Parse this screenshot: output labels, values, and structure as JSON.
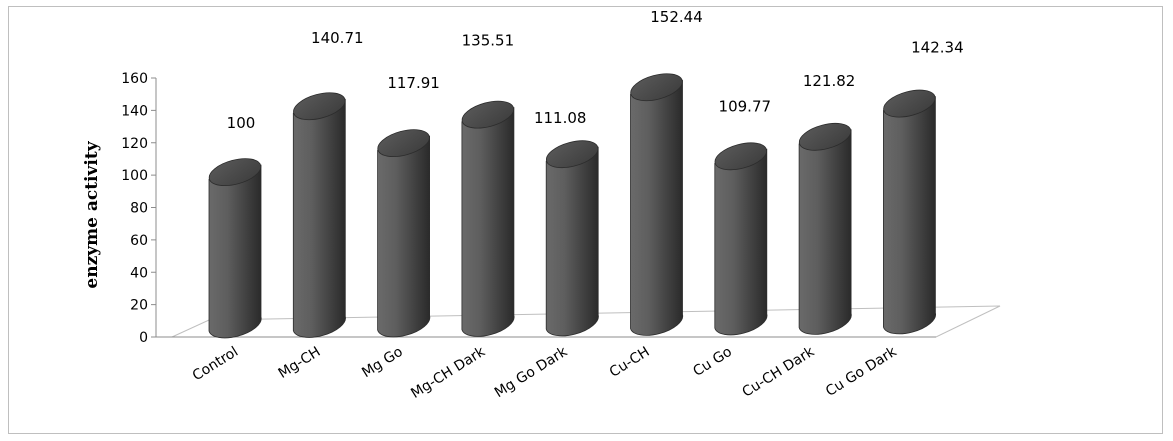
{
  "chart_data": {
    "type": "bar",
    "style": "3d-cylinder",
    "categories": [
      "Control",
      "Mg-CH",
      "Mg Go",
      "Mg-CH  Dark",
      "Mg Go Dark",
      "Cu-CH",
      "Cu Go",
      "Cu-CH Dark",
      "Cu Go Dark"
    ],
    "values": [
      100,
      140.71,
      117.91,
      135.51,
      111.08,
      152.44,
      109.77,
      121.82,
      142.34
    ],
    "data_labels": [
      "100",
      "140.71",
      "117.91",
      "135.51",
      "111.08",
      "152.44",
      "109.77",
      "121.82",
      "142.34"
    ],
    "ylabel": "enzyme  activity",
    "ylim": [
      0,
      160
    ],
    "yticks": [
      "0",
      "20",
      "40",
      "60",
      "80",
      "100",
      "120",
      "140",
      "160"
    ],
    "grid": false,
    "bar_color": "#5a5a5a"
  }
}
